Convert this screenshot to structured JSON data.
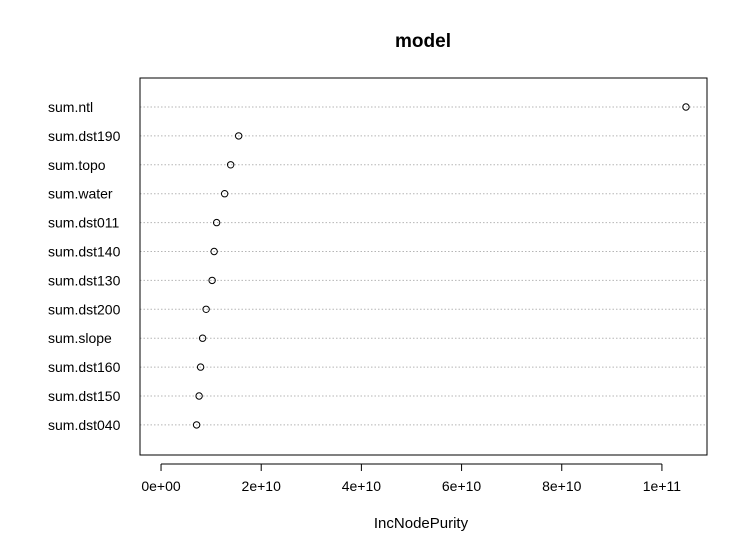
{
  "chart_data": {
    "type": "scatter",
    "title": "model",
    "xlabel": "IncNodePurity",
    "ylabel": "",
    "categories": [
      "sum.ntl",
      "sum.dst190",
      "sum.topo",
      "sum.water",
      "sum.dst011",
      "sum.dst140",
      "sum.dst130",
      "sum.dst200",
      "sum.slope",
      "sum.dst160",
      "sum.dst150",
      "sum.dst040"
    ],
    "values": [
      104800000000,
      15500000000,
      13900000000,
      12700000000,
      11100000000,
      10600000000,
      10200000000,
      9000000000,
      8300000000,
      7900000000,
      7600000000,
      7100000000
    ],
    "xlim": [
      -4200000000,
      109000000000
    ],
    "xticks": [
      0,
      20000000000,
      40000000000,
      60000000000,
      80000000000,
      100000000000
    ],
    "xtick_labels": [
      "0e+00",
      "2e+10",
      "4e+10",
      "6e+10",
      "8e+10",
      "1e+11"
    ],
    "grid": "horizontal dotted",
    "legend": "none",
    "marker": "open circle"
  }
}
